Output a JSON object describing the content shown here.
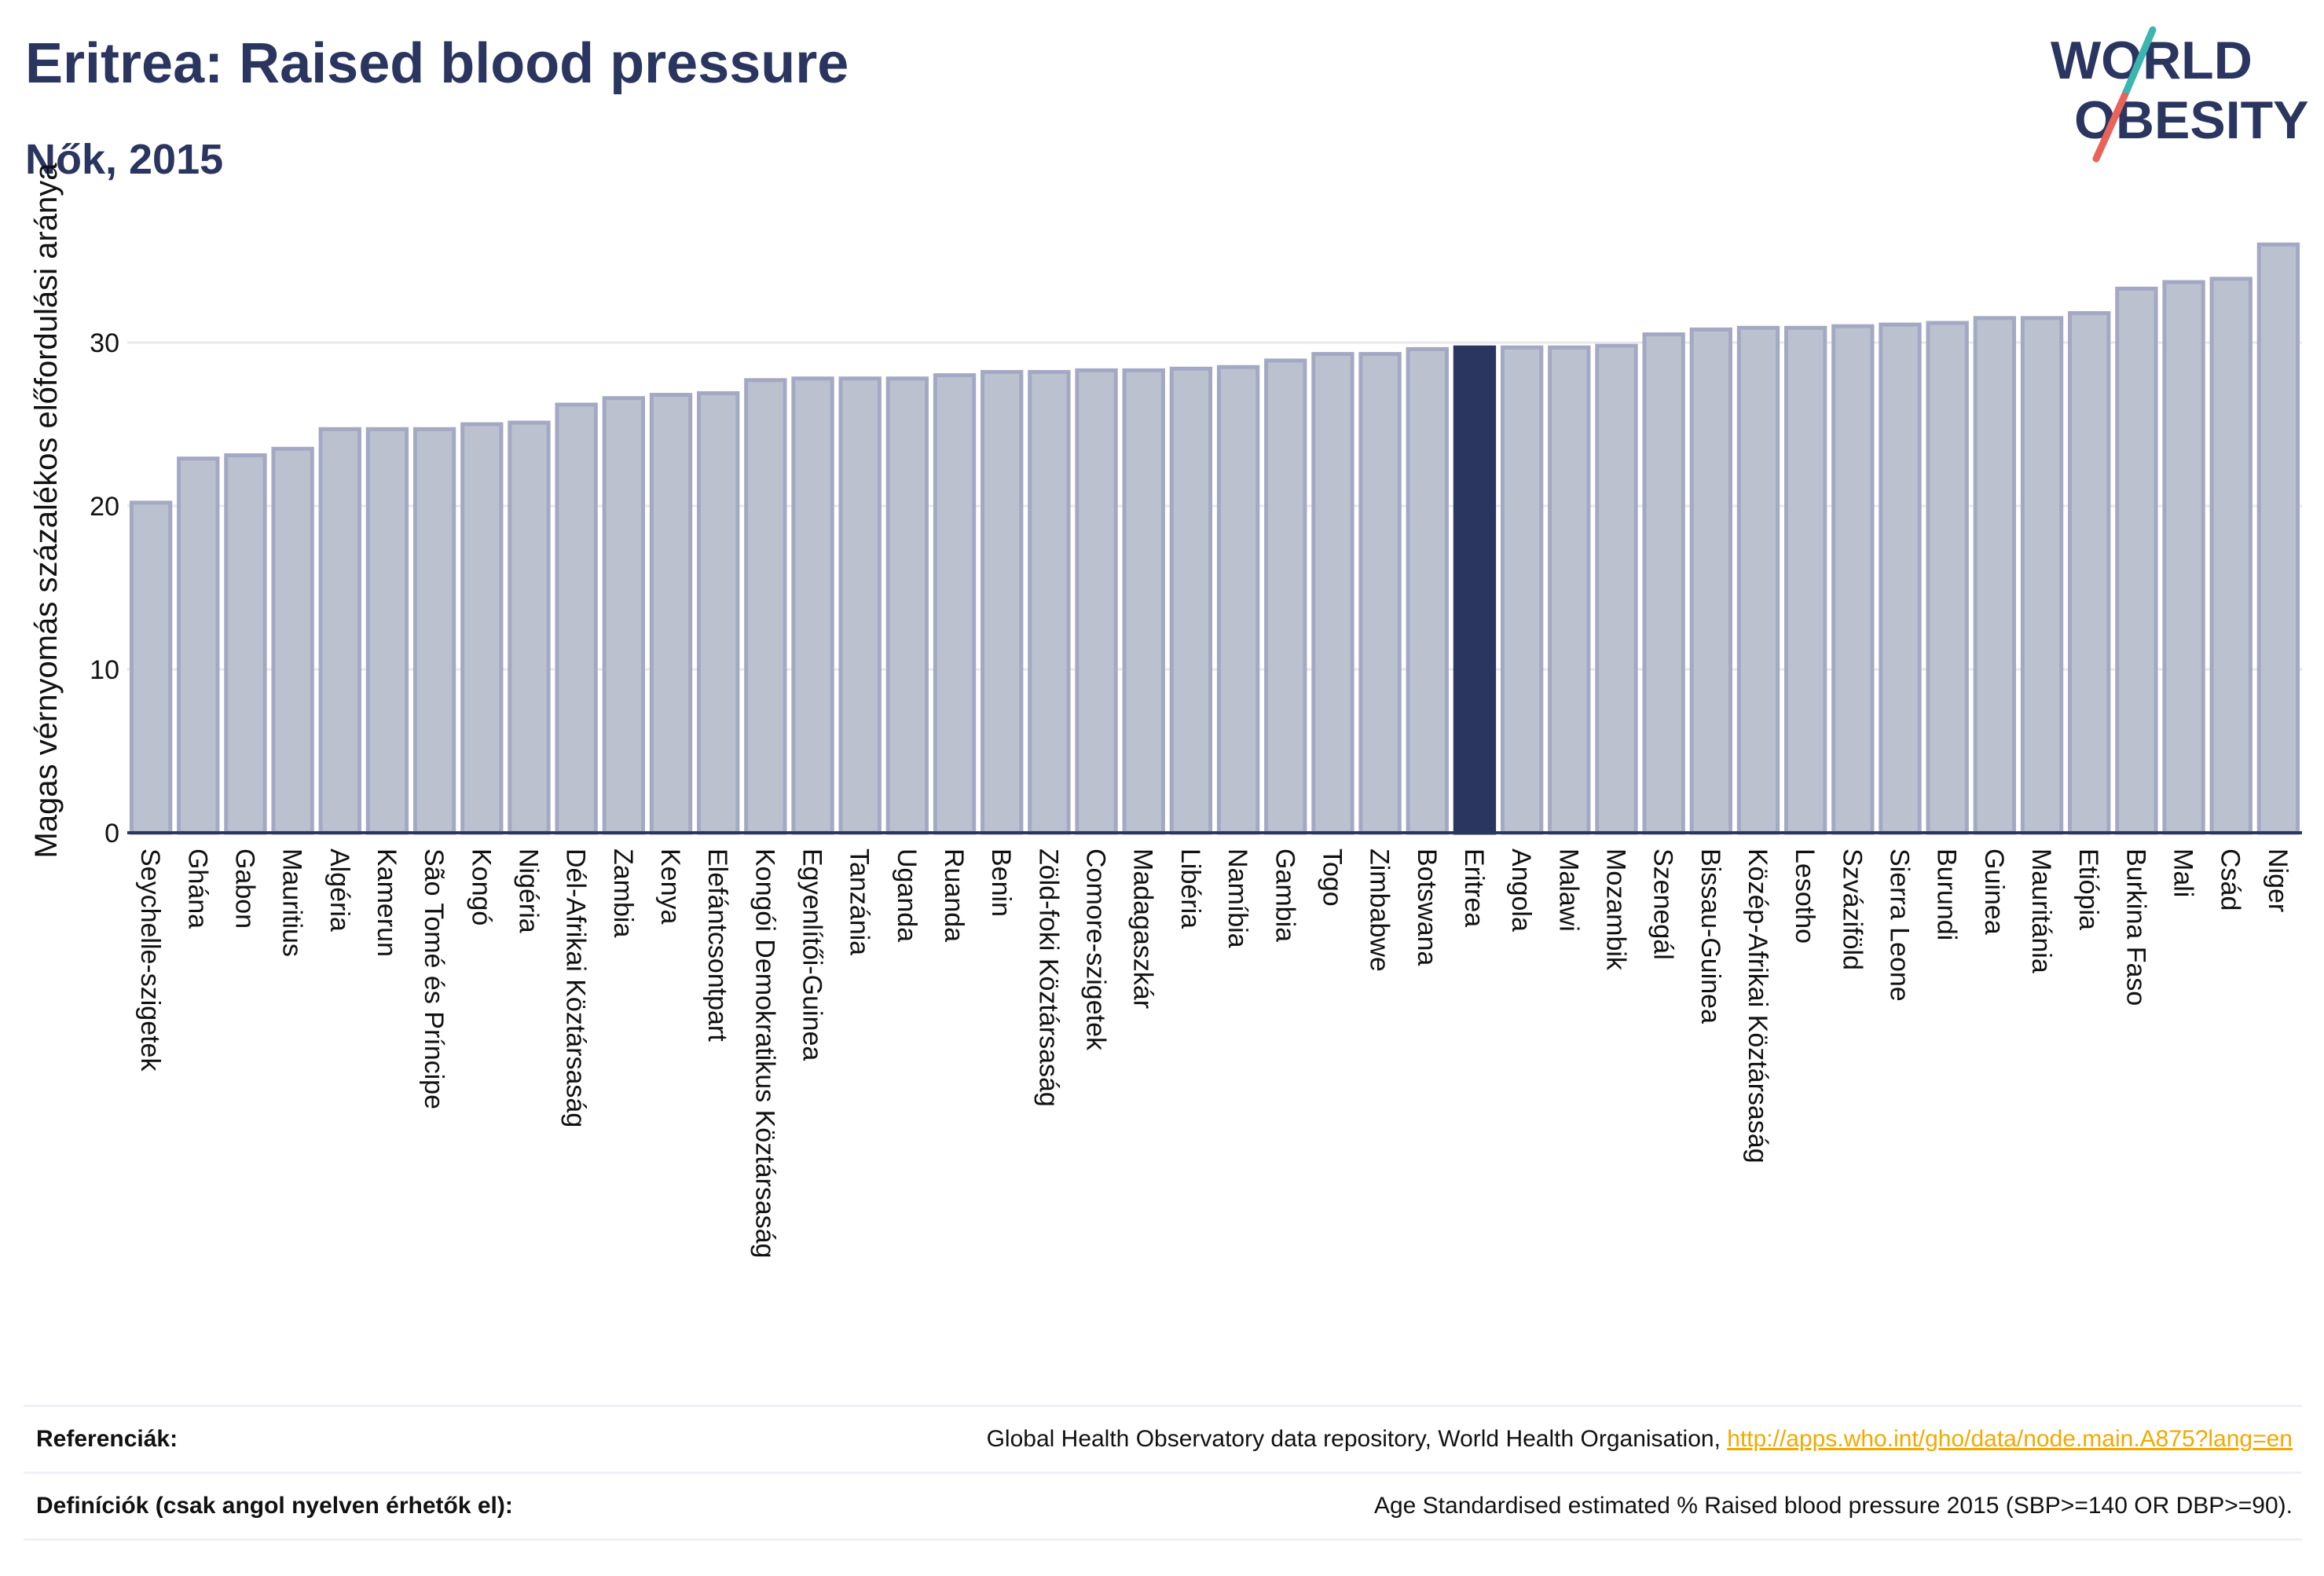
{
  "header": {
    "title": "Eritrea: Raised blood pressure",
    "subtitle": "Nők, 2015"
  },
  "logo": {
    "line1": "WORLD",
    "line2": "OBESITY",
    "colors": {
      "text": "#2a3560",
      "slash_teal": "#3ab5b0",
      "slash_red": "#e8645a"
    }
  },
  "colors": {
    "bar_fill": "#bcc1d0",
    "bar_stroke": "#a3a9c2",
    "highlight": "#2a3560",
    "grid": "#e8e9ee",
    "axis": "#2a3560"
  },
  "chart_data": {
    "type": "bar",
    "ylabel": "Magas vérnyomás százalékos előfordulási aránya",
    "ylim": [
      0,
      37
    ],
    "yticks": [
      0,
      10,
      20,
      30
    ],
    "highlight": "Eritrea",
    "categories": [
      "Seychelle-szigetek",
      "Ghána",
      "Gabon",
      "Mauritius",
      "Algéria",
      "Kamerun",
      "São Tomé és Príncipe",
      "Kongó",
      "Nigéria",
      "Dél-Afrikai Köztársaság",
      "Zambia",
      "Kenya",
      "Elefántcsontpart",
      "Kongói Demokratikus Köztársaság",
      "Egyenlítői-Guinea",
      "Tanzánia",
      "Uganda",
      "Ruanda",
      "Benin",
      "Zöld-foki Köztársaság",
      "Comore-szigetek",
      "Madagaszkár",
      "Libéria",
      "Namíbia",
      "Gambia",
      "Togo",
      "Zimbabwe",
      "Botswana",
      "Eritrea",
      "Angola",
      "Malawi",
      "Mozambik",
      "Szenegál",
      "Bissau-Guinea",
      "Közép-Afrikai Köztársaság",
      "Lesotho",
      "Szváziföld",
      "Sierra Leone",
      "Burundi",
      "Guinea",
      "Mauritánia",
      "Etiópia",
      "Burkina Faso",
      "Mali",
      "Csád",
      "Niger"
    ],
    "values": [
      20.2,
      22.9,
      23.1,
      23.5,
      24.7,
      24.7,
      24.7,
      25.0,
      25.1,
      26.2,
      26.6,
      26.8,
      26.9,
      27.7,
      27.8,
      27.8,
      27.8,
      28.0,
      28.2,
      28.2,
      28.3,
      28.3,
      28.4,
      28.5,
      28.9,
      29.3,
      29.3,
      29.6,
      29.7,
      29.7,
      29.7,
      29.8,
      30.5,
      30.8,
      30.9,
      30.9,
      31.0,
      31.1,
      31.2,
      31.5,
      31.5,
      31.8,
      33.3,
      33.7,
      33.9,
      36.0
    ]
  },
  "references": {
    "ref_label": "Referenciák:",
    "ref_text": "Global Health Observatory data repository, World Health Organisation, ",
    "ref_link": "http://apps.who.int/gho/data/node.main.A875?lang=en",
    "def_label": "Definíciók (csak angol nyelven érhetők el):",
    "def_text": "Age Standardised estimated % Raised blood pressure 2015 (SBP>=140 OR DBP>=90)."
  }
}
